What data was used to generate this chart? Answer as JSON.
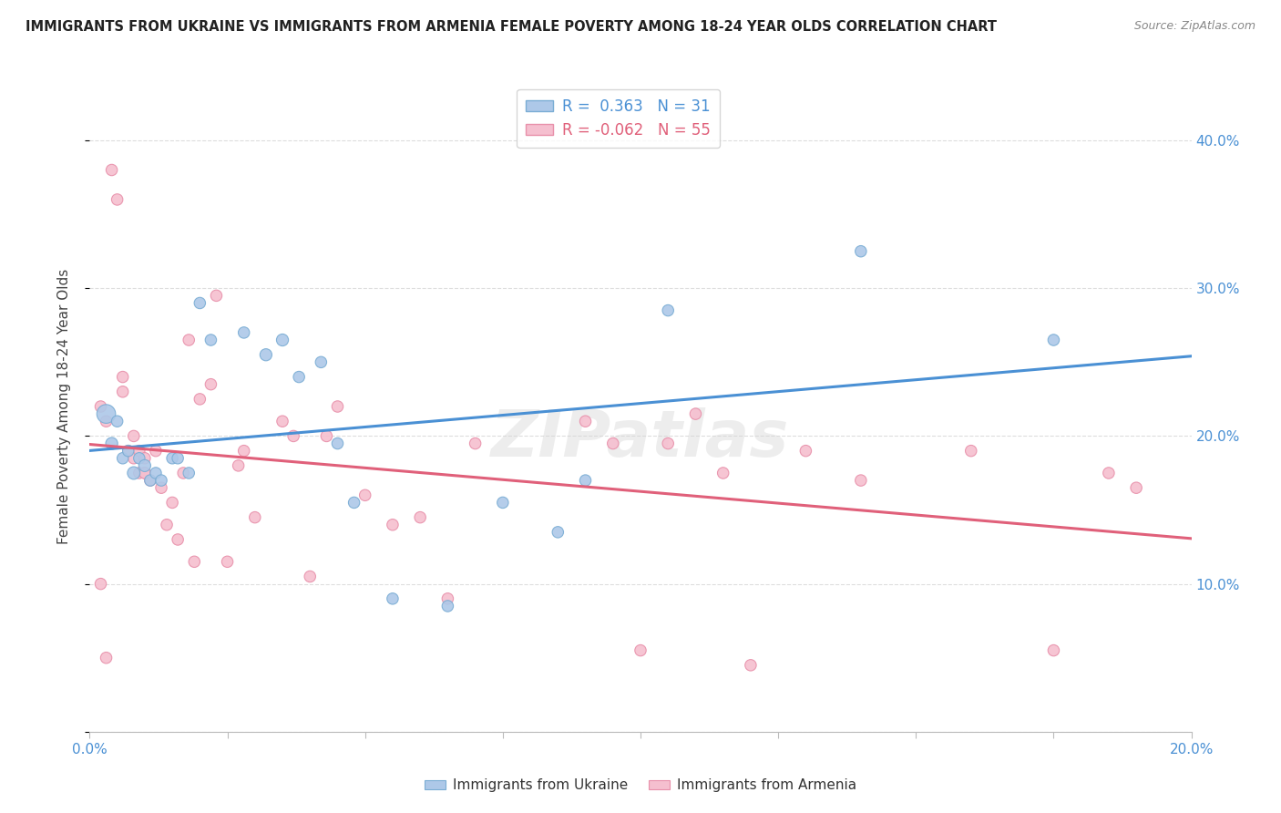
{
  "title": "IMMIGRANTS FROM UKRAINE VS IMMIGRANTS FROM ARMENIA FEMALE POVERTY AMONG 18-24 YEAR OLDS CORRELATION CHART",
  "source": "Source: ZipAtlas.com",
  "ylabel": "Female Poverty Among 18-24 Year Olds",
  "xlim": [
    0.0,
    0.2
  ],
  "ylim": [
    0.0,
    0.44
  ],
  "yticks": [
    0.0,
    0.1,
    0.2,
    0.3,
    0.4
  ],
  "ytick_labels": [
    "",
    "10.0%",
    "20.0%",
    "30.0%",
    "40.0%"
  ],
  "ukraine_color": "#adc8e8",
  "ukraine_edge": "#7aadd4",
  "armenia_color": "#f5bfcf",
  "armenia_edge": "#e890aa",
  "ukraine_line_color": "#4a90d4",
  "armenia_line_color": "#e0607a",
  "ukraine_R": 0.363,
  "ukraine_N": 31,
  "armenia_R": -0.062,
  "armenia_N": 55,
  "watermark": "ZIPatlas",
  "ukraine_x": [
    0.003,
    0.004,
    0.005,
    0.006,
    0.007,
    0.008,
    0.009,
    0.01,
    0.011,
    0.012,
    0.013,
    0.015,
    0.016,
    0.018,
    0.02,
    0.022,
    0.028,
    0.032,
    0.035,
    0.038,
    0.042,
    0.045,
    0.048,
    0.055,
    0.065,
    0.075,
    0.085,
    0.09,
    0.105,
    0.14,
    0.175
  ],
  "ukraine_y": [
    0.215,
    0.195,
    0.21,
    0.185,
    0.19,
    0.175,
    0.185,
    0.18,
    0.17,
    0.175,
    0.17,
    0.185,
    0.185,
    0.175,
    0.29,
    0.265,
    0.27,
    0.255,
    0.265,
    0.24,
    0.25,
    0.195,
    0.155,
    0.09,
    0.085,
    0.155,
    0.135,
    0.17,
    0.285,
    0.325,
    0.265
  ],
  "ukraine_sizes": [
    220,
    90,
    80,
    80,
    80,
    100,
    80,
    90,
    80,
    80,
    80,
    80,
    80,
    80,
    80,
    80,
    80,
    90,
    90,
    80,
    80,
    80,
    80,
    80,
    80,
    80,
    80,
    80,
    80,
    80,
    80
  ],
  "armenia_x": [
    0.002,
    0.003,
    0.004,
    0.005,
    0.006,
    0.006,
    0.007,
    0.008,
    0.008,
    0.009,
    0.009,
    0.01,
    0.01,
    0.011,
    0.012,
    0.013,
    0.014,
    0.015,
    0.016,
    0.017,
    0.018,
    0.019,
    0.02,
    0.022,
    0.023,
    0.025,
    0.027,
    0.028,
    0.03,
    0.035,
    0.037,
    0.04,
    0.043,
    0.045,
    0.05,
    0.055,
    0.06,
    0.065,
    0.07,
    0.09,
    0.095,
    0.1,
    0.105,
    0.11,
    0.115,
    0.12,
    0.13,
    0.14,
    0.16,
    0.175,
    0.185,
    0.19,
    0.002,
    0.003,
    0.01
  ],
  "armenia_y": [
    0.1,
    0.05,
    0.38,
    0.36,
    0.24,
    0.23,
    0.19,
    0.2,
    0.185,
    0.19,
    0.175,
    0.185,
    0.175,
    0.17,
    0.19,
    0.165,
    0.14,
    0.155,
    0.13,
    0.175,
    0.265,
    0.115,
    0.225,
    0.235,
    0.295,
    0.115,
    0.18,
    0.19,
    0.145,
    0.21,
    0.2,
    0.105,
    0.2,
    0.22,
    0.16,
    0.14,
    0.145,
    0.09,
    0.195,
    0.21,
    0.195,
    0.055,
    0.195,
    0.215,
    0.175,
    0.045,
    0.19,
    0.17,
    0.19,
    0.055,
    0.175,
    0.165,
    0.22,
    0.21,
    0.175
  ],
  "armenia_sizes": [
    80,
    80,
    80,
    80,
    80,
    80,
    80,
    80,
    80,
    80,
    80,
    80,
    80,
    80,
    80,
    80,
    80,
    80,
    80,
    80,
    80,
    80,
    80,
    80,
    80,
    80,
    80,
    80,
    80,
    80,
    80,
    80,
    80,
    80,
    80,
    80,
    80,
    80,
    80,
    80,
    80,
    80,
    80,
    80,
    80,
    80,
    80,
    80,
    80,
    80,
    80,
    80,
    80,
    80,
    80
  ],
  "grid_color": "#dddddd",
  "background_color": "#ffffff"
}
